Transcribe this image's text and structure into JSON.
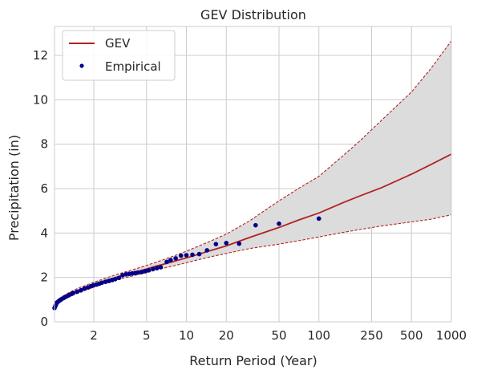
{
  "chart_data": {
    "type": "line",
    "title": "GEV Distribution",
    "xlabel": "Return Period (Year)",
    "ylabel": "Precipitation (in)",
    "x_scale": "log",
    "xlim": [
      1.01,
      1000
    ],
    "ylim": [
      0,
      13.3
    ],
    "x_ticks": [
      2,
      5,
      10,
      20,
      50,
      100,
      250,
      500,
      1000
    ],
    "y_ticks": [
      0,
      2,
      4,
      6,
      8,
      10,
      12
    ],
    "grid": true,
    "legend_position": "top-left",
    "fit": {
      "name": "GEV",
      "color": "#b22222",
      "x": [
        1.01,
        1.05,
        1.1,
        1.2,
        1.3,
        1.5,
        1.7,
        2,
        2.5,
        3,
        4,
        5,
        6,
        7,
        8,
        10,
        12,
        15,
        20,
        30,
        50,
        70,
        100,
        150,
        200,
        300,
        500,
        700,
        1000
      ],
      "y": [
        0.65,
        0.82,
        0.95,
        1.1,
        1.22,
        1.4,
        1.52,
        1.68,
        1.88,
        2.02,
        2.22,
        2.38,
        2.52,
        2.62,
        2.72,
        2.88,
        3.02,
        3.2,
        3.42,
        3.8,
        4.25,
        4.58,
        4.9,
        5.35,
        5.65,
        6.05,
        6.65,
        7.08,
        7.55
      ]
    },
    "ci_upper": {
      "x": [
        1.01,
        1.05,
        1.1,
        1.2,
        1.3,
        1.5,
        1.7,
        2,
        2.5,
        3,
        4,
        5,
        6,
        7,
        8,
        10,
        12,
        15,
        20,
        30,
        50,
        70,
        100,
        150,
        200,
        300,
        500,
        700,
        1000
      ],
      "y": [
        0.72,
        0.92,
        1.05,
        1.2,
        1.32,
        1.5,
        1.62,
        1.78,
        1.98,
        2.14,
        2.36,
        2.54,
        2.7,
        2.84,
        2.96,
        3.18,
        3.38,
        3.62,
        3.95,
        4.55,
        5.45,
        6.0,
        6.55,
        7.45,
        8.1,
        9.1,
        10.35,
        11.4,
        12.65
      ]
    },
    "ci_lower": {
      "x": [
        1.01,
        1.05,
        1.1,
        1.2,
        1.3,
        1.5,
        1.7,
        2,
        2.5,
        3,
        4,
        5,
        6,
        7,
        8,
        10,
        12,
        15,
        20,
        30,
        50,
        70,
        100,
        150,
        200,
        300,
        500,
        700,
        1000
      ],
      "y": [
        0.58,
        0.74,
        0.86,
        1.0,
        1.12,
        1.28,
        1.4,
        1.56,
        1.76,
        1.9,
        2.08,
        2.22,
        2.34,
        2.44,
        2.52,
        2.66,
        2.78,
        2.92,
        3.08,
        3.3,
        3.5,
        3.65,
        3.82,
        4.02,
        4.15,
        4.32,
        4.5,
        4.62,
        4.82
      ]
    },
    "ci_fill_color": "#dcdcdc",
    "empirical": {
      "name": "Empirical",
      "color": "#00008b",
      "x": [
        1.01,
        1.02,
        1.03,
        1.04,
        1.05,
        1.07,
        1.09,
        1.11,
        1.14,
        1.17,
        1.2,
        1.25,
        1.3,
        1.35,
        1.4,
        1.5,
        1.6,
        1.7,
        1.8,
        1.9,
        2.0,
        2.1,
        2.2,
        2.3,
        2.45,
        2.6,
        2.75,
        2.9,
        3.1,
        3.3,
        3.5,
        3.7,
        3.9,
        4.1,
        4.3,
        4.6,
        4.9,
        5.2,
        5.6,
        6.0,
        6.4,
        7.1,
        7.6,
        8.3,
        9.1,
        10.0,
        11.1,
        12.5,
        14.3,
        16.7,
        20.0,
        25.0,
        33.3,
        50.0,
        100.0
      ],
      "y": [
        0.62,
        0.68,
        0.74,
        0.8,
        0.86,
        0.9,
        0.94,
        0.98,
        1.02,
        1.06,
        1.1,
        1.15,
        1.2,
        1.25,
        1.3,
        1.36,
        1.42,
        1.5,
        1.55,
        1.6,
        1.65,
        1.68,
        1.72,
        1.76,
        1.8,
        1.84,
        1.88,
        1.92,
        1.98,
        2.1,
        2.14,
        2.16,
        2.18,
        2.2,
        2.22,
        2.24,
        2.28,
        2.32,
        2.38,
        2.42,
        2.46,
        2.7,
        2.78,
        2.86,
        2.98,
        3.0,
        3.02,
        3.05,
        3.22,
        3.5,
        3.55,
        3.52,
        4.35,
        4.42,
        4.65
      ]
    }
  }
}
